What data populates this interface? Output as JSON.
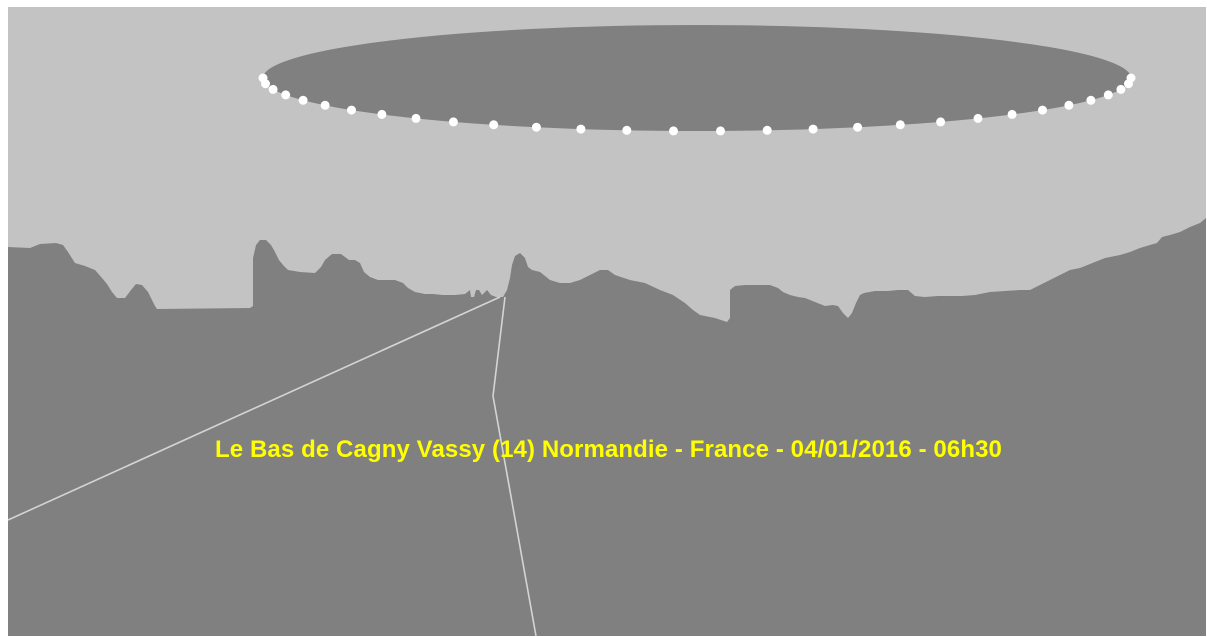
{
  "caption": "Le Bas de Cagny Vassy (14) Normandie - France - 04/01/2016 - 06h30",
  "colors": {
    "sky": "#c3c3c3",
    "ground": "#808080",
    "ufo": "#808080",
    "lights": "#ffffff",
    "road_lines": "#d4d4d4",
    "caption": "#ffff00",
    "border": "#ffffff"
  },
  "ufo": {
    "light_count": 30
  }
}
